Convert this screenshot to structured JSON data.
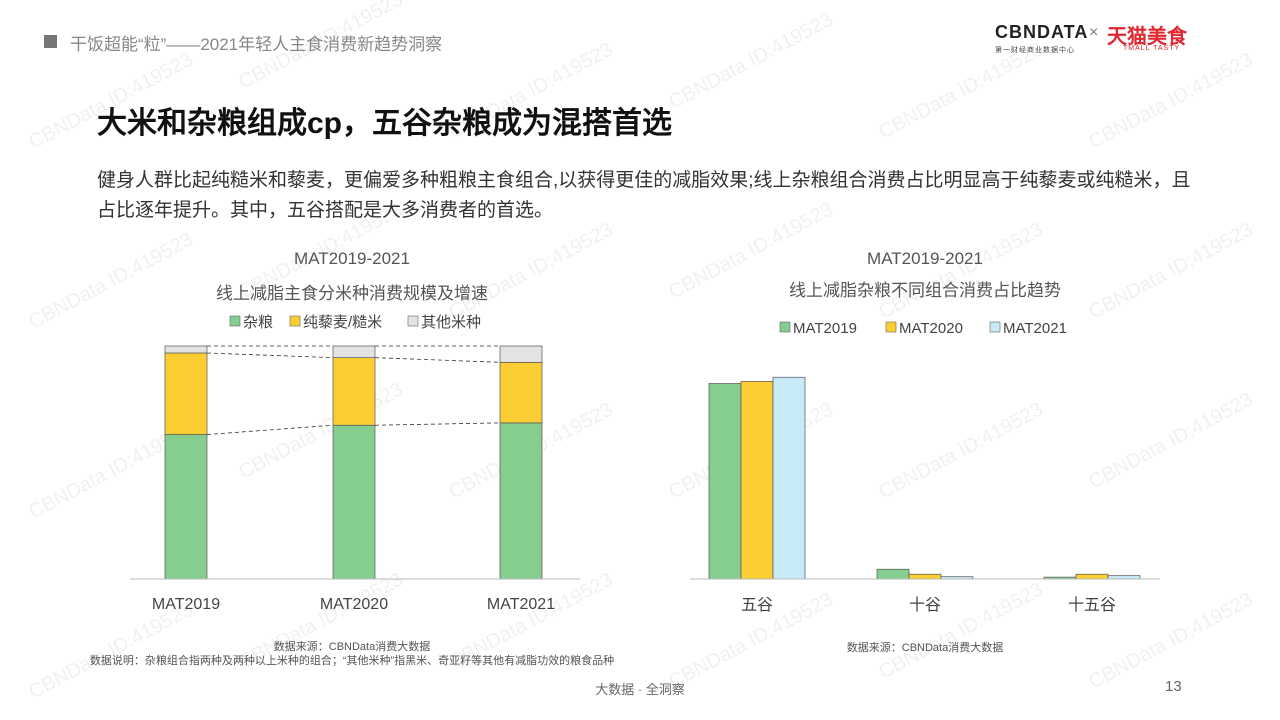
{
  "header": {
    "breadcrumb": "干饭超能“粒”——2021年轻人主食消费新趋势洞察",
    "logo_cbn": "CBNDATA",
    "logo_cbn_sub": "第一财经商业数据中心",
    "logo_times": "×",
    "logo_tmall": "天猫美食",
    "logo_tmall_sub": "TMALL TASTY"
  },
  "page": {
    "title": "大米和杂粮组成cp，五谷杂粮成为混搭首选",
    "description": "健身人群比起纯糙米和藜麦，更偏爱多种粗粮主食组合,以获得更佳的减脂效果;线上杂粮组合消费占比明显高于纯藜麦或纯糙米，且占比逐年提升。其中，五谷搭配是大多消费者的首选。",
    "footer": "大数据 · 全洞察",
    "page_number": "13",
    "watermark": "CBNData ID:419523"
  },
  "colors": {
    "green": "#86cd90",
    "yellow": "#fcce33",
    "gray": "#e3e3e3",
    "lightblue": "#c6ebf7"
  },
  "chart_data": [
    {
      "type": "bar",
      "stacked": true,
      "period": "MAT2019-2021",
      "title": "线上减脂主食分米种消费规模及增速",
      "categories": [
        "MAT2019",
        "MAT2020",
        "MAT2021"
      ],
      "series": [
        {
          "name": "杂粮",
          "values": [
            0.62,
            0.66,
            0.67
          ],
          "color": "#86cd90"
        },
        {
          "name": "纯藜麦/糙米",
          "values": [
            0.35,
            0.29,
            0.26
          ],
          "color": "#fcce33"
        },
        {
          "name": "其他米种",
          "values": [
            0.03,
            0.05,
            0.07
          ],
          "color": "#e3e3e3"
        }
      ],
      "ylim": [
        0,
        1
      ],
      "legend": "top",
      "source": "数据来源：CBNData消费大数据",
      "note": "数据说明：杂粮组合指两种及两种以上米种的组合；“其他米种”指黑米、奇亚籽等其他有减脂功效的粮食品种"
    },
    {
      "type": "bar",
      "period": "MAT2019-2021",
      "title": "线上减脂杂粮不同组合消费占比趋势",
      "categories": [
        "五谷",
        "十谷",
        "十五谷"
      ],
      "series": [
        {
          "name": "MAT2019",
          "values": [
            0.94,
            0.047,
            0.009
          ],
          "color": "#86cd90"
        },
        {
          "name": "MAT2020",
          "values": [
            0.95,
            0.023,
            0.023
          ],
          "color": "#fcce33"
        },
        {
          "name": "MAT2021",
          "values": [
            0.97,
            0.011,
            0.016
          ],
          "color": "#c6ebf7"
        }
      ],
      "ylim": [
        0,
        1
      ],
      "legend": "top",
      "source": "数据来源：CBNData消费大数据"
    }
  ]
}
